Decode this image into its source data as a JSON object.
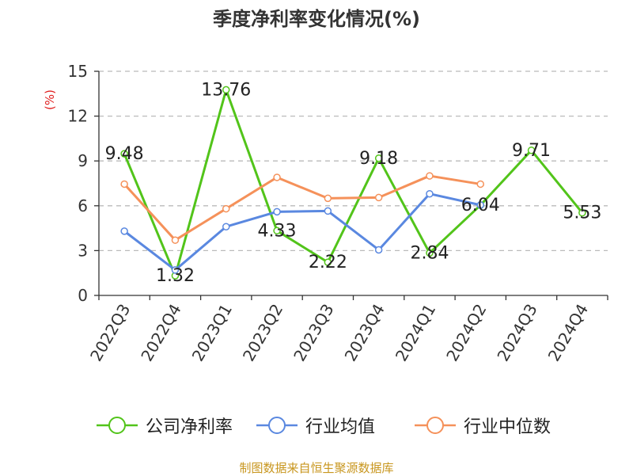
{
  "title": "季度净利率变化情况(%)",
  "source": "制图数据来自恒生聚源数据库",
  "chart_data": {
    "type": "line",
    "ylabel": "(%)",
    "ylim": [
      0,
      15
    ],
    "yticks": [
      0,
      3,
      6,
      9,
      12,
      15
    ],
    "grid": true,
    "legend_position": "bottom",
    "categories": [
      "2022Q3",
      "2022Q4",
      "2023Q1",
      "2023Q2",
      "2023Q3",
      "2023Q4",
      "2024Q1",
      "2024Q2",
      "2024Q3",
      "2024Q4"
    ],
    "series": [
      {
        "name": "公司净利率",
        "color": "#52c41a",
        "values": [
          9.48,
          1.32,
          13.76,
          4.33,
          2.22,
          9.18,
          2.84,
          6.04,
          9.71,
          5.53
        ],
        "labels": [
          "9.48",
          "1.32",
          "13.76",
          "4.33",
          "2.22",
          "9.18",
          "2.84",
          "6.04",
          "9.71",
          "5.53"
        ]
      },
      {
        "name": "行业均值",
        "color": "#5a88e0",
        "values": [
          4.3,
          1.7,
          4.6,
          5.6,
          5.65,
          3.05,
          6.8,
          6.05,
          null,
          null
        ]
      },
      {
        "name": "行业中位数",
        "color": "#f5915a",
        "values": [
          7.45,
          3.7,
          5.8,
          7.9,
          6.5,
          6.55,
          8.0,
          7.45,
          null,
          null
        ]
      }
    ]
  }
}
